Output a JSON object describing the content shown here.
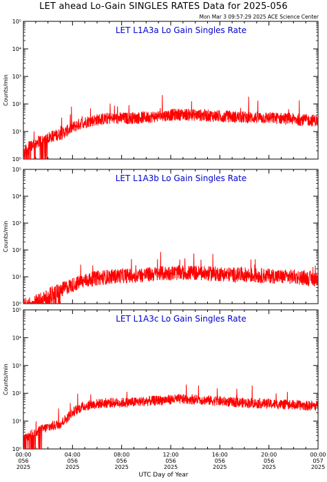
{
  "header": {
    "title": "LET ahead Lo-Gain SINGLES RATES Data for 2025-056",
    "timestamp": "Mon Mar  3 09:57:29 2025 ACE Science Center"
  },
  "colors": {
    "trace": "#ff0000",
    "panel_label": "#0000cc",
    "axis": "#000000"
  },
  "chart_data": [
    {
      "type": "line",
      "panel_label": "LET L1A3a Lo Gain Singles Rate",
      "ylabel": "Counts/min",
      "yscale": "log",
      "ylim": [
        1,
        100000
      ],
      "ytick_labels": [
        "10⁰",
        "10¹",
        "10²",
        "10³",
        "10⁴",
        "10⁵"
      ],
      "x_hours": [
        0,
        0.5,
        1,
        1.5,
        2,
        2.5,
        3,
        3.5,
        4,
        4.5,
        5,
        6,
        7,
        8,
        9,
        10,
        11,
        12,
        13,
        14,
        15,
        16,
        17,
        18,
        19,
        20,
        21,
        22,
        23,
        24
      ],
      "values": [
        1.5,
        3,
        4,
        5,
        6,
        7,
        8,
        10,
        14,
        18,
        22,
        27,
        30,
        30,
        31,
        33,
        36,
        40,
        42,
        40,
        38,
        36,
        34,
        33,
        32,
        31,
        30,
        28,
        26,
        25
      ],
      "noise_amp": 0.22,
      "low_dropouts_until": 2.0
    },
    {
      "type": "line",
      "panel_label": "LET L1A3b Lo Gain Singles Rate",
      "ylabel": "Counts/min",
      "yscale": "log",
      "ylim": [
        1,
        100000
      ],
      "ytick_labels": [
        "10⁰",
        "10¹",
        "10²",
        "10³",
        "10⁴",
        "10⁵"
      ],
      "x_hours": [
        0,
        0.5,
        1,
        1.5,
        2,
        2.5,
        3,
        3.5,
        4,
        4.5,
        5,
        6,
        7,
        8,
        9,
        10,
        11,
        12,
        13,
        14,
        15,
        16,
        17,
        18,
        19,
        20,
        21,
        22,
        23,
        24
      ],
      "values": [
        1,
        1,
        1.2,
        1.5,
        2,
        2.5,
        3,
        4,
        5,
        6,
        7,
        9,
        10,
        11,
        11,
        12,
        13,
        14,
        14,
        14,
        13,
        13,
        12,
        12,
        11,
        11,
        10,
        10,
        9,
        8
      ],
      "noise_amp": 0.28,
      "low_dropouts_until": 3.0
    },
    {
      "type": "line",
      "panel_label": "LET L1A3c Lo Gain Singles Rate",
      "ylabel": "Counts/min",
      "yscale": "log",
      "ylim": [
        1,
        100000
      ],
      "ytick_labels": [
        "10⁰",
        "10¹",
        "10²",
        "10³",
        "10⁴",
        "10⁵"
      ],
      "x_hours": [
        0,
        0.5,
        1,
        1.5,
        2,
        2.5,
        3,
        3.5,
        4,
        4.5,
        5,
        6,
        7,
        8,
        9,
        10,
        11,
        12,
        13,
        14,
        15,
        16,
        17,
        18,
        19,
        20,
        21,
        22,
        23,
        24
      ],
      "values": [
        2,
        3,
        4,
        5,
        6,
        7,
        8,
        12,
        20,
        28,
        35,
        42,
        46,
        46,
        48,
        52,
        56,
        60,
        62,
        60,
        56,
        52,
        48,
        46,
        44,
        42,
        40,
        38,
        36,
        35
      ],
      "noise_amp": 0.18,
      "low_dropouts_until": 1.5
    }
  ],
  "x_axis": {
    "label": "UTC Day of Year",
    "ticks": [
      {
        "hour": 0,
        "time": "00:00",
        "doy": "056",
        "year": "2025"
      },
      {
        "hour": 4,
        "time": "04:00",
        "doy": "056",
        "year": "2025"
      },
      {
        "hour": 8,
        "time": "08:00",
        "doy": "056",
        "year": "2025"
      },
      {
        "hour": 12,
        "time": "12:00",
        "doy": "056",
        "year": "2025"
      },
      {
        "hour": 16,
        "time": "16:00",
        "doy": "056",
        "year": "2025"
      },
      {
        "hour": 20,
        "time": "20:00",
        "doy": "056",
        "year": "2025"
      },
      {
        "hour": 24,
        "time": "00:00",
        "doy": "057",
        "year": "2025"
      }
    ]
  }
}
